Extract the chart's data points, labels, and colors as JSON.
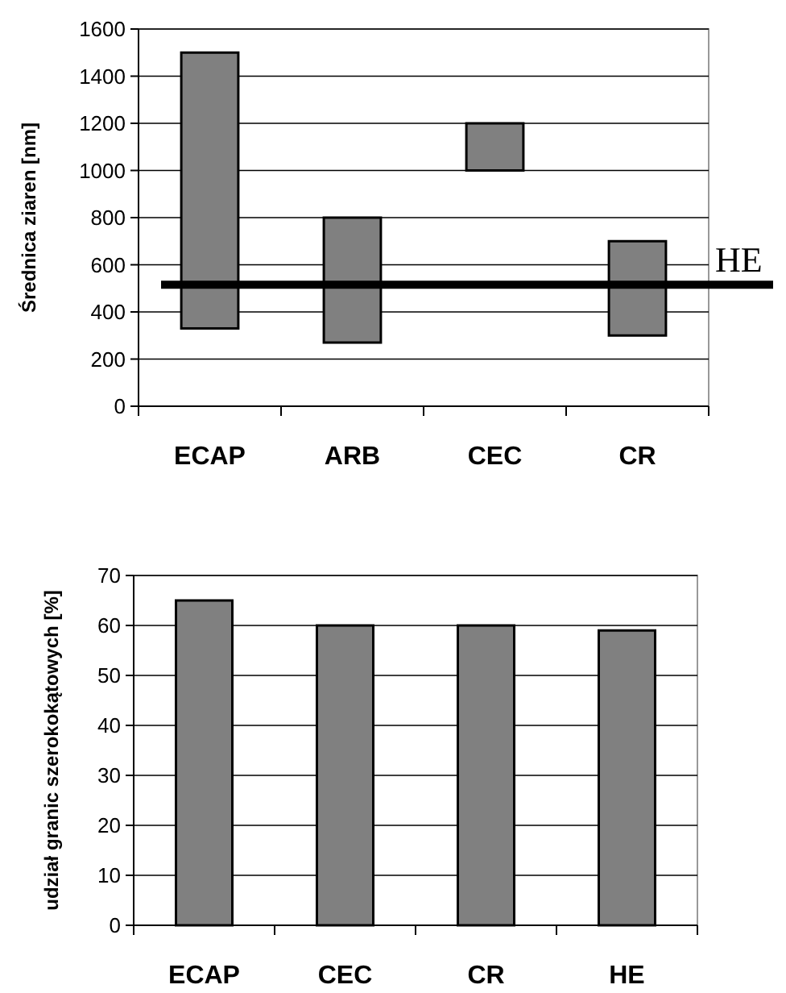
{
  "chart_data": [
    {
      "type": "bar",
      "ylabel": "Średnica ziaren [nm]",
      "categories": [
        "ECAP",
        "ARB",
        "CEC",
        "CR"
      ],
      "values": [
        1170,
        530,
        200,
        400
      ],
      "base": [
        330,
        270,
        1000,
        300
      ],
      "color": "#808080",
      "ylim": [
        0,
        1600
      ],
      "yticks": [
        0,
        200,
        400,
        600,
        800,
        1000,
        1200,
        1400,
        1600
      ],
      "grid": "y",
      "ref_lines": [
        {
          "axis": "y",
          "value": 515,
          "label": "HE",
          "color": "#000000"
        }
      ]
    },
    {
      "type": "bar",
      "ylabel": "udział granic szerokokątowych [%]",
      "categories": [
        "ECAP",
        "CEC",
        "CR",
        "HE"
      ],
      "values": [
        65,
        60,
        60,
        59
      ],
      "color": "#808080",
      "ylim": [
        0,
        70
      ],
      "yticks": [
        0,
        10,
        20,
        30,
        40,
        50,
        60,
        70
      ],
      "grid": "y"
    }
  ]
}
